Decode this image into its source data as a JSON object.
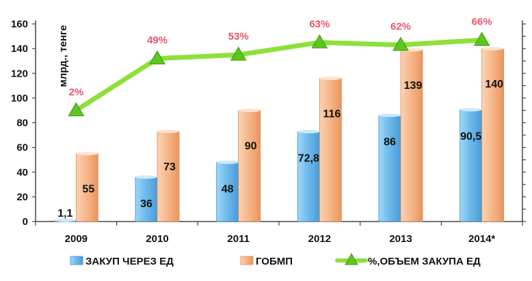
{
  "chart_data": {
    "type": "bar",
    "ylabel": "млрд., тенге",
    "ylim": [
      0,
      160
    ],
    "yticks": [
      0,
      20,
      40,
      60,
      80,
      100,
      120,
      140,
      160
    ],
    "categories": [
      "2009",
      "2010",
      "2011",
      "2012",
      "2013",
      "2014*"
    ],
    "series": [
      {
        "name": "ЗАКУП ЧЕРЕЗ ЕД",
        "kind": "bar",
        "values": [
          1.1,
          36,
          48,
          72.8,
          86,
          90.5
        ],
        "labels": [
          "1,1",
          "36",
          "48",
          "72,8",
          "86",
          "90,5"
        ]
      },
      {
        "name": "ГОБМП",
        "kind": "bar",
        "values": [
          55,
          73,
          90,
          116,
          139,
          140
        ],
        "labels": [
          "55",
          "73",
          "90",
          "116",
          "139",
          "140"
        ]
      },
      {
        "name": "%,ОБЪЕМ ЗАКУПА ЕД",
        "kind": "line",
        "values": [
          2,
          49,
          53,
          63,
          62,
          66
        ],
        "labels": [
          "2%",
          "49%",
          "53%",
          "63%",
          "62%",
          "66%"
        ],
        "plotted_at": [
          90,
          132,
          135,
          145,
          143,
          147
        ]
      }
    ],
    "legend_position": "bottom",
    "grid": false,
    "colors": {
      "bar1": "#7ec3ee",
      "bar2": "#f7bf94",
      "line": "#8de03a",
      "pct_label": "#f0506a"
    }
  }
}
